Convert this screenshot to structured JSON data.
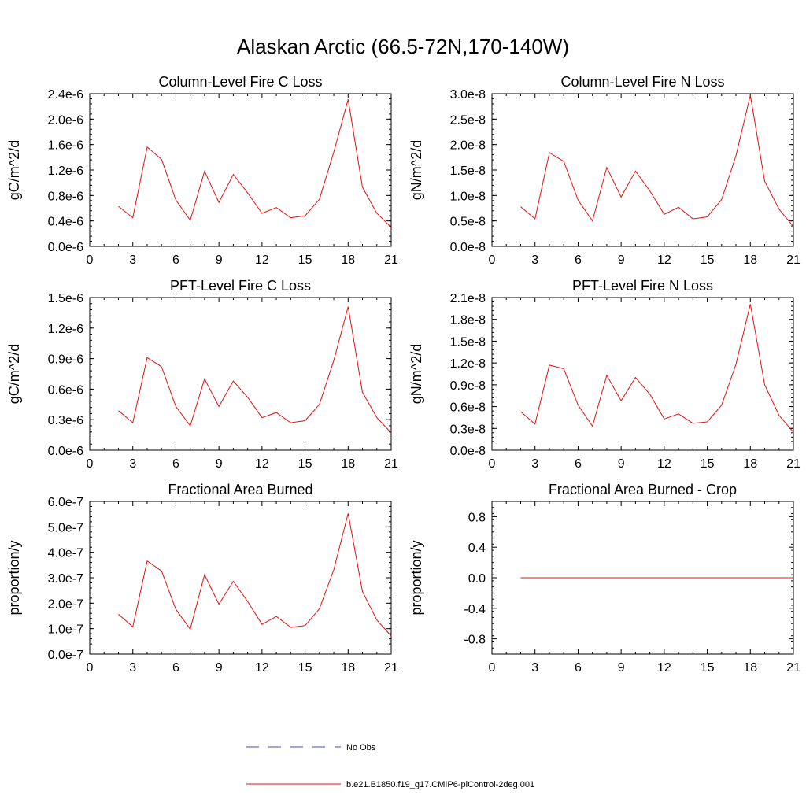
{
  "figure": {
    "title": "Alaskan Arctic (66.5-72N,170-140W)"
  },
  "legend": {
    "entries": [
      {
        "label": "No Obs",
        "style": "dashed",
        "color": "#4a4aa8"
      },
      {
        "label": "b.e21.B1850.f19_g17.CMIP6-piControl-2deg.001",
        "style": "solid",
        "color": "#e01010"
      }
    ]
  },
  "colors": {
    "model_line": "#e01010",
    "obs_line": "#4a4aa8"
  },
  "chart_data": [
    {
      "type": "line",
      "title": "Column-Level Fire C Loss",
      "ylabel": "gC/m^2/d",
      "xlim": [
        0,
        21
      ],
      "xticks": [
        0,
        3,
        6,
        9,
        12,
        15,
        18,
        21
      ],
      "ylim": [
        0,
        2.4
      ],
      "yticks": [
        0,
        0.4,
        0.8,
        1.2,
        1.6,
        2.0,
        2.4
      ],
      "ytick_labels": [
        "0.0e-6",
        "0.4e-6",
        "0.8e-6",
        "1.2e-6",
        "1.6e-6",
        "2.0e-6",
        "2.4e-6"
      ],
      "y_scale_note": "values in units of 1e-6",
      "x": [
        2,
        3,
        4,
        5,
        6,
        7,
        8,
        9,
        10,
        11,
        12,
        13,
        14,
        15,
        16,
        17,
        18,
        19,
        20,
        21
      ],
      "series": [
        {
          "values": [
            0.63,
            0.45,
            1.56,
            1.37,
            0.73,
            0.41,
            1.18,
            0.69,
            1.13,
            0.84,
            0.52,
            0.61,
            0.45,
            0.48,
            0.74,
            1.48,
            2.31,
            0.93,
            0.52,
            0.3
          ]
        }
      ]
    },
    {
      "type": "line",
      "title": "Column-Level Fire N Loss",
      "ylabel": "gN/m^2/d",
      "xlim": [
        0,
        21
      ],
      "xticks": [
        0,
        3,
        6,
        9,
        12,
        15,
        18,
        21
      ],
      "ylim": [
        0,
        3.0
      ],
      "yticks": [
        0,
        0.5,
        1.0,
        1.5,
        2.0,
        2.5,
        3.0
      ],
      "ytick_labels": [
        "0.0e-8",
        "0.5e-8",
        "1.0e-8",
        "1.5e-8",
        "2.0e-8",
        "2.5e-8",
        "3.0e-8"
      ],
      "y_scale_note": "values in units of 1e-8",
      "x": [
        2,
        3,
        4,
        5,
        6,
        7,
        8,
        9,
        10,
        11,
        12,
        13,
        14,
        15,
        16,
        17,
        18,
        19,
        20,
        21
      ],
      "series": [
        {
          "values": [
            0.78,
            0.54,
            1.84,
            1.67,
            0.91,
            0.5,
            1.55,
            0.97,
            1.48,
            1.09,
            0.63,
            0.77,
            0.54,
            0.58,
            0.92,
            1.78,
            2.97,
            1.28,
            0.73,
            0.39
          ]
        }
      ]
    },
    {
      "type": "line",
      "title": "PFT-Level Fire C Loss",
      "ylabel": "gC/m^2/d",
      "xlim": [
        0,
        21
      ],
      "xticks": [
        0,
        3,
        6,
        9,
        12,
        15,
        18,
        21
      ],
      "ylim": [
        0,
        1.5
      ],
      "yticks": [
        0,
        0.3,
        0.6,
        0.9,
        1.2,
        1.5
      ],
      "ytick_labels": [
        "0.0e-6",
        "0.3e-6",
        "0.6e-6",
        "0.9e-6",
        "1.2e-6",
        "1.5e-6"
      ],
      "y_scale_note": "values in units of 1e-6",
      "x": [
        2,
        3,
        4,
        5,
        6,
        7,
        8,
        9,
        10,
        11,
        12,
        13,
        14,
        15,
        16,
        17,
        18,
        19,
        20,
        21
      ],
      "series": [
        {
          "values": [
            0.39,
            0.27,
            0.91,
            0.82,
            0.43,
            0.24,
            0.7,
            0.43,
            0.68,
            0.52,
            0.32,
            0.37,
            0.27,
            0.29,
            0.45,
            0.88,
            1.41,
            0.57,
            0.32,
            0.17
          ]
        }
      ]
    },
    {
      "type": "line",
      "title": "PFT-Level Fire N Loss",
      "ylabel": "gN/m^2/d",
      "xlim": [
        0,
        21
      ],
      "xticks": [
        0,
        3,
        6,
        9,
        12,
        15,
        18,
        21
      ],
      "ylim": [
        0,
        2.1
      ],
      "yticks": [
        0,
        0.3,
        0.6,
        0.9,
        1.2,
        1.5,
        1.8,
        2.1
      ],
      "ytick_labels": [
        "0.0e-8",
        "0.3e-8",
        "0.6e-8",
        "0.9e-8",
        "1.2e-8",
        "1.5e-8",
        "1.8e-8",
        "2.1e-8"
      ],
      "y_scale_note": "values in units of 1e-8",
      "x": [
        2,
        3,
        4,
        5,
        6,
        7,
        8,
        9,
        10,
        11,
        12,
        13,
        14,
        15,
        16,
        17,
        18,
        19,
        20,
        21
      ],
      "series": [
        {
          "values": [
            0.53,
            0.36,
            1.17,
            1.12,
            0.62,
            0.33,
            1.03,
            0.68,
            1.0,
            0.77,
            0.43,
            0.5,
            0.37,
            0.39,
            0.62,
            1.18,
            2.01,
            0.9,
            0.48,
            0.25
          ]
        }
      ]
    },
    {
      "type": "line",
      "title": "Fractional Area Burned",
      "ylabel": "proportion/y",
      "xlim": [
        0,
        21
      ],
      "xticks": [
        0,
        3,
        6,
        9,
        12,
        15,
        18,
        21
      ],
      "ylim": [
        0,
        6.0
      ],
      "yticks": [
        0,
        1,
        2,
        3,
        4,
        5,
        6
      ],
      "ytick_labels": [
        "0.0e-7",
        "1.0e-7",
        "2.0e-7",
        "3.0e-7",
        "4.0e-7",
        "5.0e-7",
        "6.0e-7"
      ],
      "y_scale_note": "values in units of 1e-7",
      "x": [
        2,
        3,
        4,
        5,
        6,
        7,
        8,
        9,
        10,
        11,
        12,
        13,
        14,
        15,
        16,
        17,
        18,
        19,
        20,
        21
      ],
      "series": [
        {
          "values": [
            1.57,
            1.07,
            3.66,
            3.27,
            1.76,
            0.98,
            3.12,
            1.96,
            2.86,
            2.07,
            1.17,
            1.48,
            1.05,
            1.12,
            1.78,
            3.31,
            5.53,
            2.46,
            1.34,
            0.71
          ]
        }
      ]
    },
    {
      "type": "line",
      "title": "Fractional Area Burned - Crop",
      "ylabel": "proportion/y",
      "xlim": [
        0,
        21
      ],
      "xticks": [
        0,
        3,
        6,
        9,
        12,
        15,
        18,
        21
      ],
      "ylim": [
        -1.0,
        1.0
      ],
      "yticks": [
        -0.8,
        -0.4,
        0.0,
        0.4,
        0.8
      ],
      "ytick_labels": [
        "-0.8",
        "-0.4",
        "0.0",
        "0.4",
        "0.8"
      ],
      "x": [
        2,
        3,
        4,
        5,
        6,
        7,
        8,
        9,
        10,
        11,
        12,
        13,
        14,
        15,
        16,
        17,
        18,
        19,
        20,
        21
      ],
      "series": [
        {
          "values": [
            0,
            0,
            0,
            0,
            0,
            0,
            0,
            0,
            0,
            0,
            0,
            0,
            0,
            0,
            0,
            0,
            0,
            0,
            0,
            0
          ]
        }
      ]
    }
  ]
}
